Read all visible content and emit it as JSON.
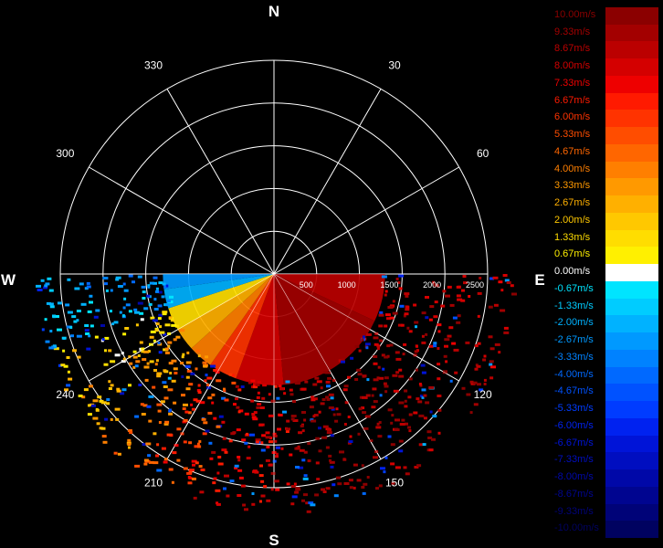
{
  "chart_data": {
    "type": "polar-radar-ppi",
    "compass": {
      "north": "N",
      "south": "S",
      "east": "E",
      "west": "W"
    },
    "bearing_labels": [
      "30",
      "60",
      "120",
      "150",
      "210",
      "240",
      "300",
      "330"
    ],
    "range_rings": [
      500,
      1000,
      1500,
      2000,
      2500
    ],
    "range_max": 2500,
    "range_labels": [
      "500",
      "1000",
      "1500",
      "2000",
      "2500"
    ],
    "scan_sector_deg": [
      90,
      270
    ],
    "velocity_sectors": [
      {
        "az_from": 90,
        "az_to": 115,
        "velocity": 8.67
      },
      {
        "az_from": 115,
        "az_to": 150,
        "velocity": 9.33
      },
      {
        "az_from": 150,
        "az_to": 175,
        "velocity": 9.33
      },
      {
        "az_from": 175,
        "az_to": 200,
        "velocity": 8.0
      },
      {
        "az_from": 200,
        "az_to": 215,
        "velocity": 6.0
      },
      {
        "az_from": 215,
        "az_to": 228,
        "velocity": 4.0
      },
      {
        "az_from": 228,
        "az_to": 240,
        "velocity": 2.67
      },
      {
        "az_from": 240,
        "az_to": 252,
        "velocity": 1.33
      },
      {
        "az_from": 252,
        "az_to": 262,
        "velocity": -2.0
      },
      {
        "az_from": 262,
        "az_to": 270,
        "velocity": -2.67
      }
    ],
    "colorbar": [
      {
        "label": "10.00m/s",
        "color": "#8b0000"
      },
      {
        "label": "9.33m/s",
        "color": "#a30000"
      },
      {
        "label": "8.67m/s",
        "color": "#bb0000"
      },
      {
        "label": "8.00m/s",
        "color": "#d40000"
      },
      {
        "label": "7.33m/s",
        "color": "#ee0000"
      },
      {
        "label": "6.67m/s",
        "color": "#ff1a00"
      },
      {
        "label": "6.00m/s",
        "color": "#ff3300"
      },
      {
        "label": "5.33m/s",
        "color": "#ff4d00"
      },
      {
        "label": "4.67m/s",
        "color": "#ff6600"
      },
      {
        "label": "4.00m/s",
        "color": "#ff7f00"
      },
      {
        "label": "3.33m/s",
        "color": "#ff9900"
      },
      {
        "label": "2.67m/s",
        "color": "#ffb000"
      },
      {
        "label": "2.00m/s",
        "color": "#ffc800"
      },
      {
        "label": "1.33m/s",
        "color": "#ffdd00"
      },
      {
        "label": "0.67m/s",
        "color": "#fff000"
      },
      {
        "label": "0.00m/s",
        "color": "#ffffff"
      },
      {
        "label": "-0.67m/s",
        "color": "#00e4ff"
      },
      {
        "label": "-1.33m/s",
        "color": "#00ccff"
      },
      {
        "label": "-2.00m/s",
        "color": "#00b2ff"
      },
      {
        "label": "-2.67m/s",
        "color": "#0099ff"
      },
      {
        "label": "-3.33m/s",
        "color": "#0082ff"
      },
      {
        "label": "-4.00m/s",
        "color": "#0069ff"
      },
      {
        "label": "-4.67m/s",
        "color": "#0052ff"
      },
      {
        "label": "-5.33m/s",
        "color": "#003cff"
      },
      {
        "label": "-6.00m/s",
        "color": "#0022f0"
      },
      {
        "label": "-6.67m/s",
        "color": "#0014d8"
      },
      {
        "label": "-7.33m/s",
        "color": "#000ec0"
      },
      {
        "label": "-8.00m/s",
        "color": "#0008a8"
      },
      {
        "label": "-8.67m/s",
        "color": "#000590"
      },
      {
        "label": "-9.33m/s",
        "color": "#000378"
      },
      {
        "label": "-10.00m/s",
        "color": "#000260"
      }
    ]
  },
  "colors": {
    "background": "#000000",
    "grid": "#ffffff"
  }
}
